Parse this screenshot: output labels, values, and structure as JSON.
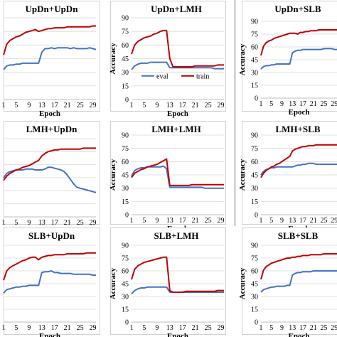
{
  "chart_data": [
    {
      "type": "line",
      "title": "UpDn+UpDn",
      "xlabel": "Epoch",
      "ylabel": "",
      "ylim": [
        0,
        90
      ],
      "yticks": [],
      "x": [
        1,
        2,
        3,
        4,
        5,
        6,
        7,
        8,
        9,
        10,
        11,
        12,
        13,
        14,
        15,
        16,
        17,
        18,
        19,
        20,
        21,
        22,
        23,
        24,
        25,
        26,
        27,
        28,
        29,
        30
      ],
      "xticks": [
        1,
        5,
        9,
        13,
        17,
        21,
        25,
        29
      ],
      "grid": true,
      "series": [
        {
          "name": "eval",
          "color": "#4472c4",
          "values": [
            33,
            37,
            38,
            38,
            39,
            39,
            40,
            40,
            40,
            40,
            40,
            40,
            52,
            56,
            56,
            57,
            56,
            57,
            57,
            57,
            57,
            56,
            57,
            56,
            56,
            56,
            56,
            57,
            56,
            55
          ]
        },
        {
          "name": "train",
          "color": "#c00000",
          "values": [
            49,
            61,
            65,
            67,
            69,
            70,
            72,
            74,
            75,
            76,
            77,
            75,
            76,
            77,
            78,
            78,
            79,
            79,
            79,
            79,
            80,
            80,
            80,
            80,
            80,
            80,
            80,
            80,
            81,
            81
          ]
        }
      ],
      "legend": null
    },
    {
      "type": "line",
      "title": "UpDn+LMH",
      "xlabel": "Epoch",
      "ylabel": "Accuracy",
      "ylim": [
        0,
        90
      ],
      "yticks": [
        0,
        15,
        30,
        45,
        60,
        75,
        90
      ],
      "x": [
        1,
        2,
        3,
        4,
        5,
        6,
        7,
        8,
        9,
        10,
        11,
        12,
        13,
        14,
        15,
        16,
        17,
        18,
        19,
        20,
        21,
        22,
        23,
        24,
        25,
        26,
        27,
        28,
        29,
        30
      ],
      "xticks": [
        1,
        5,
        9,
        13,
        17,
        21,
        25,
        29
      ],
      "grid": true,
      "series": [
        {
          "name": "eval",
          "color": "#4472c4",
          "values": [
            33,
            37,
            39,
            40,
            40,
            40,
            41,
            41,
            41,
            41,
            41,
            41,
            35,
            35,
            35,
            35,
            35,
            35,
            35,
            35,
            35,
            35,
            35,
            35,
            35,
            35,
            34,
            34,
            34,
            34
          ]
        },
        {
          "name": "train",
          "color": "#c00000",
          "values": [
            50,
            60,
            64,
            66,
            68,
            69,
            70,
            72,
            73,
            75,
            76,
            76,
            45,
            36,
            36,
            36,
            36,
            36,
            36,
            36,
            37,
            37,
            37,
            37,
            37,
            37,
            37,
            38,
            38,
            38
          ]
        }
      ],
      "legend": {
        "position": "bottom-center",
        "entries": [
          "eval",
          "train"
        ]
      }
    },
    {
      "type": "line",
      "title": "UpDn+SLB",
      "xlabel": "Epoch",
      "ylabel": "Accuracy",
      "ylim": [
        0,
        90
      ],
      "yticks": [
        0,
        15,
        30,
        45,
        60,
        75,
        90
      ],
      "x": [
        1,
        2,
        3,
        4,
        5,
        6,
        7,
        8,
        9,
        10,
        11,
        12,
        13,
        14,
        15,
        16,
        17,
        18,
        19,
        20,
        21,
        22,
        23,
        24,
        25,
        26,
        27,
        28,
        29,
        30
      ],
      "xticks": [
        1,
        5,
        9,
        13,
        17,
        21,
        25,
        29
      ],
      "grid": true,
      "series": [
        {
          "name": "eval",
          "color": "#4472c4",
          "values": [
            34,
            37,
            38,
            38,
            39,
            39,
            40,
            40,
            40,
            40,
            40,
            40,
            53,
            55,
            56,
            56,
            57,
            57,
            57,
            57,
            57,
            57,
            57,
            57,
            58,
            58,
            58,
            58,
            57,
            57
          ]
        },
        {
          "name": "train",
          "color": "#c00000",
          "values": [
            50,
            61,
            65,
            67,
            68,
            70,
            71,
            72,
            73,
            74,
            75,
            76,
            76,
            76,
            75,
            77,
            77,
            78,
            78,
            79,
            79,
            79,
            80,
            80,
            80,
            80,
            80,
            80,
            80,
            80
          ]
        }
      ],
      "legend": null
    },
    {
      "type": "line",
      "title": "LMH+UpDn",
      "xlabel": "Epoch",
      "ylabel": "",
      "ylim": [
        0,
        90
      ],
      "yticks": [],
      "x": [
        1,
        2,
        3,
        4,
        5,
        6,
        7,
        8,
        9,
        10,
        11,
        12,
        13,
        14,
        15,
        16,
        17,
        18,
        19,
        20,
        21,
        22,
        23,
        24,
        25,
        26,
        27,
        28,
        29,
        30
      ],
      "xticks": [
        1,
        5,
        9,
        13,
        17,
        21,
        25,
        29
      ],
      "grid": true,
      "series": [
        {
          "name": "eval",
          "color": "#4472c4",
          "values": [
            45,
            50,
            52,
            53,
            54,
            54,
            54,
            55,
            55,
            55,
            54,
            54,
            54,
            55,
            57,
            57,
            56,
            55,
            54,
            52,
            48,
            43,
            38,
            34,
            33,
            32,
            31,
            30,
            29,
            28
          ]
        },
        {
          "name": "train",
          "color": "#c00000",
          "values": [
            42,
            47,
            50,
            52,
            54,
            55,
            57,
            58,
            59,
            61,
            63,
            65,
            70,
            73,
            75,
            76,
            77,
            77,
            78,
            78,
            78,
            78,
            78,
            78,
            78,
            79,
            79,
            79,
            79,
            79
          ]
        }
      ],
      "legend": null
    },
    {
      "type": "line",
      "title": "LMH+LMH",
      "xlabel": "Epoch",
      "ylabel": "Accuracy",
      "ylim": [
        0,
        90
      ],
      "yticks": [
        0,
        15,
        30,
        45,
        60,
        75,
        90
      ],
      "x": [
        1,
        2,
        3,
        4,
        5,
        6,
        7,
        8,
        9,
        10,
        11,
        12,
        13,
        14,
        15,
        16,
        17,
        18,
        19,
        20,
        21,
        22,
        23,
        24,
        25,
        26,
        27,
        28,
        29,
        30
      ],
      "xticks": [
        1,
        5,
        9,
        13,
        17,
        21,
        25,
        29
      ],
      "grid": true,
      "series": [
        {
          "name": "eval",
          "color": "#4472c4",
          "values": [
            44,
            50,
            52,
            53,
            53,
            54,
            54,
            54,
            54,
            54,
            55,
            52,
            31,
            31,
            31,
            31,
            31,
            31,
            31,
            31,
            31,
            31,
            31,
            30,
            30,
            30,
            30,
            30,
            30,
            30
          ]
        },
        {
          "name": "train",
          "color": "#c00000",
          "values": [
            42,
            47,
            49,
            51,
            52,
            54,
            55,
            56,
            57,
            59,
            61,
            63,
            33,
            33,
            33,
            33,
            33,
            33,
            33,
            34,
            34,
            34,
            34,
            34,
            34,
            34,
            34,
            34,
            34,
            34
          ]
        }
      ],
      "legend": null
    },
    {
      "type": "line",
      "title": "LMH+SLB",
      "xlabel": "Epoch",
      "ylabel": "Accuracy",
      "ylim": [
        0,
        90
      ],
      "yticks": [
        0,
        15,
        30,
        45,
        60,
        75,
        90
      ],
      "x": [
        1,
        2,
        3,
        4,
        5,
        6,
        7,
        8,
        9,
        10,
        11,
        12,
        13,
        14,
        15,
        16,
        17,
        18,
        19,
        20,
        21,
        22,
        23,
        24,
        25,
        26,
        27,
        28,
        29,
        30
      ],
      "xticks": [
        1,
        5,
        9,
        13,
        17,
        21,
        25,
        29
      ],
      "grid": true,
      "series": [
        {
          "name": "eval",
          "color": "#4472c4",
          "values": [
            45,
            49,
            51,
            52,
            53,
            53,
            54,
            54,
            54,
            54,
            54,
            54,
            54,
            55,
            56,
            56,
            57,
            57,
            58,
            58,
            58,
            57,
            57,
            57,
            57,
            57,
            57,
            57,
            57,
            57
          ]
        },
        {
          "name": "train",
          "color": "#c00000",
          "values": [
            42,
            47,
            50,
            52,
            54,
            55,
            57,
            58,
            60,
            62,
            64,
            66,
            72,
            74,
            75,
            76,
            77,
            77,
            78,
            78,
            78,
            79,
            79,
            79,
            79,
            79,
            79,
            79,
            79,
            79
          ]
        }
      ],
      "legend": null
    },
    {
      "type": "line",
      "title": "SLB+UpDn",
      "xlabel": "Epoch",
      "ylabel": "",
      "ylim": [
        0,
        90
      ],
      "yticks": [],
      "x": [
        1,
        2,
        3,
        4,
        5,
        6,
        7,
        8,
        9,
        10,
        11,
        12,
        13,
        14,
        15,
        16,
        17,
        18,
        19,
        20,
        21,
        22,
        23,
        24,
        25,
        26,
        27,
        28,
        29,
        30
      ],
      "xticks": [
        1,
        5,
        9,
        13,
        17,
        21,
        25,
        29
      ],
      "grid": true,
      "series": [
        {
          "name": "eval",
          "color": "#4472c4",
          "values": [
            34,
            38,
            39,
            40,
            41,
            41,
            42,
            42,
            43,
            43,
            43,
            43,
            58,
            59,
            59,
            60,
            58,
            58,
            57,
            57,
            57,
            57,
            56,
            56,
            56,
            56,
            56,
            56,
            55,
            55
          ]
        },
        {
          "name": "train",
          "color": "#c00000",
          "values": [
            49,
            60,
            64,
            66,
            68,
            70,
            72,
            73,
            75,
            76,
            76,
            73,
            76,
            77,
            78,
            78,
            79,
            79,
            79,
            79,
            80,
            80,
            80,
            80,
            80,
            80,
            81,
            81,
            81,
            81
          ]
        }
      ],
      "legend": null
    },
    {
      "type": "line",
      "title": "SLB+LMH",
      "xlabel": "Epoch",
      "ylabel": "Accuracy",
      "ylim": [
        0,
        90
      ],
      "yticks": [
        0,
        15,
        30,
        45,
        60,
        75,
        90
      ],
      "x": [
        1,
        2,
        3,
        4,
        5,
        6,
        7,
        8,
        9,
        10,
        11,
        12,
        13,
        14,
        15,
        16,
        17,
        18,
        19,
        20,
        21,
        22,
        23,
        24,
        25,
        26,
        27,
        28,
        29,
        30
      ],
      "xticks": [
        1,
        5,
        9,
        13,
        17,
        21,
        25,
        29
      ],
      "grid": true,
      "series": [
        {
          "name": "eval",
          "color": "#4472c4",
          "values": [
            33,
            37,
            39,
            40,
            40,
            41,
            41,
            41,
            41,
            41,
            41,
            41,
            35,
            35,
            35,
            35,
            35,
            35,
            35,
            35,
            35,
            35,
            35,
            35,
            35,
            35,
            35,
            35,
            35,
            35
          ]
        },
        {
          "name": "train",
          "color": "#c00000",
          "values": [
            50,
            62,
            66,
            68,
            70,
            71,
            72,
            73,
            74,
            75,
            76,
            76,
            37,
            35,
            35,
            35,
            35,
            36,
            36,
            36,
            36,
            36,
            36,
            36,
            36,
            36,
            36,
            37,
            37,
            37
          ]
        }
      ],
      "legend": null
    },
    {
      "type": "line",
      "title": "SLB+SLB",
      "xlabel": "Epoch",
      "ylabel": "Accuracy",
      "ylim": [
        0,
        90
      ],
      "yticks": [
        0,
        15,
        30,
        45,
        60,
        75,
        90
      ],
      "x": [
        1,
        2,
        3,
        4,
        5,
        6,
        7,
        8,
        9,
        10,
        11,
        12,
        13,
        14,
        15,
        16,
        17,
        18,
        19,
        20,
        21,
        22,
        23,
        24,
        25,
        26,
        27,
        28,
        29,
        30
      ],
      "xticks": [
        1,
        5,
        9,
        13,
        17,
        21,
        25,
        29
      ],
      "grid": true,
      "series": [
        {
          "name": "eval",
          "color": "#4472c4",
          "values": [
            35,
            38,
            39,
            40,
            41,
            41,
            42,
            42,
            42,
            42,
            43,
            43,
            55,
            57,
            58,
            58,
            59,
            59,
            59,
            59,
            60,
            60,
            60,
            60,
            60,
            60,
            60,
            60,
            60,
            60
          ]
        },
        {
          "name": "train",
          "color": "#c00000",
          "values": [
            50,
            61,
            65,
            67,
            69,
            70,
            71,
            72,
            73,
            74,
            75,
            75,
            76,
            76,
            77,
            77,
            78,
            78,
            78,
            79,
            79,
            79,
            79,
            79,
            80,
            80,
            80,
            80,
            80,
            80
          ]
        }
      ],
      "legend": null
    }
  ]
}
